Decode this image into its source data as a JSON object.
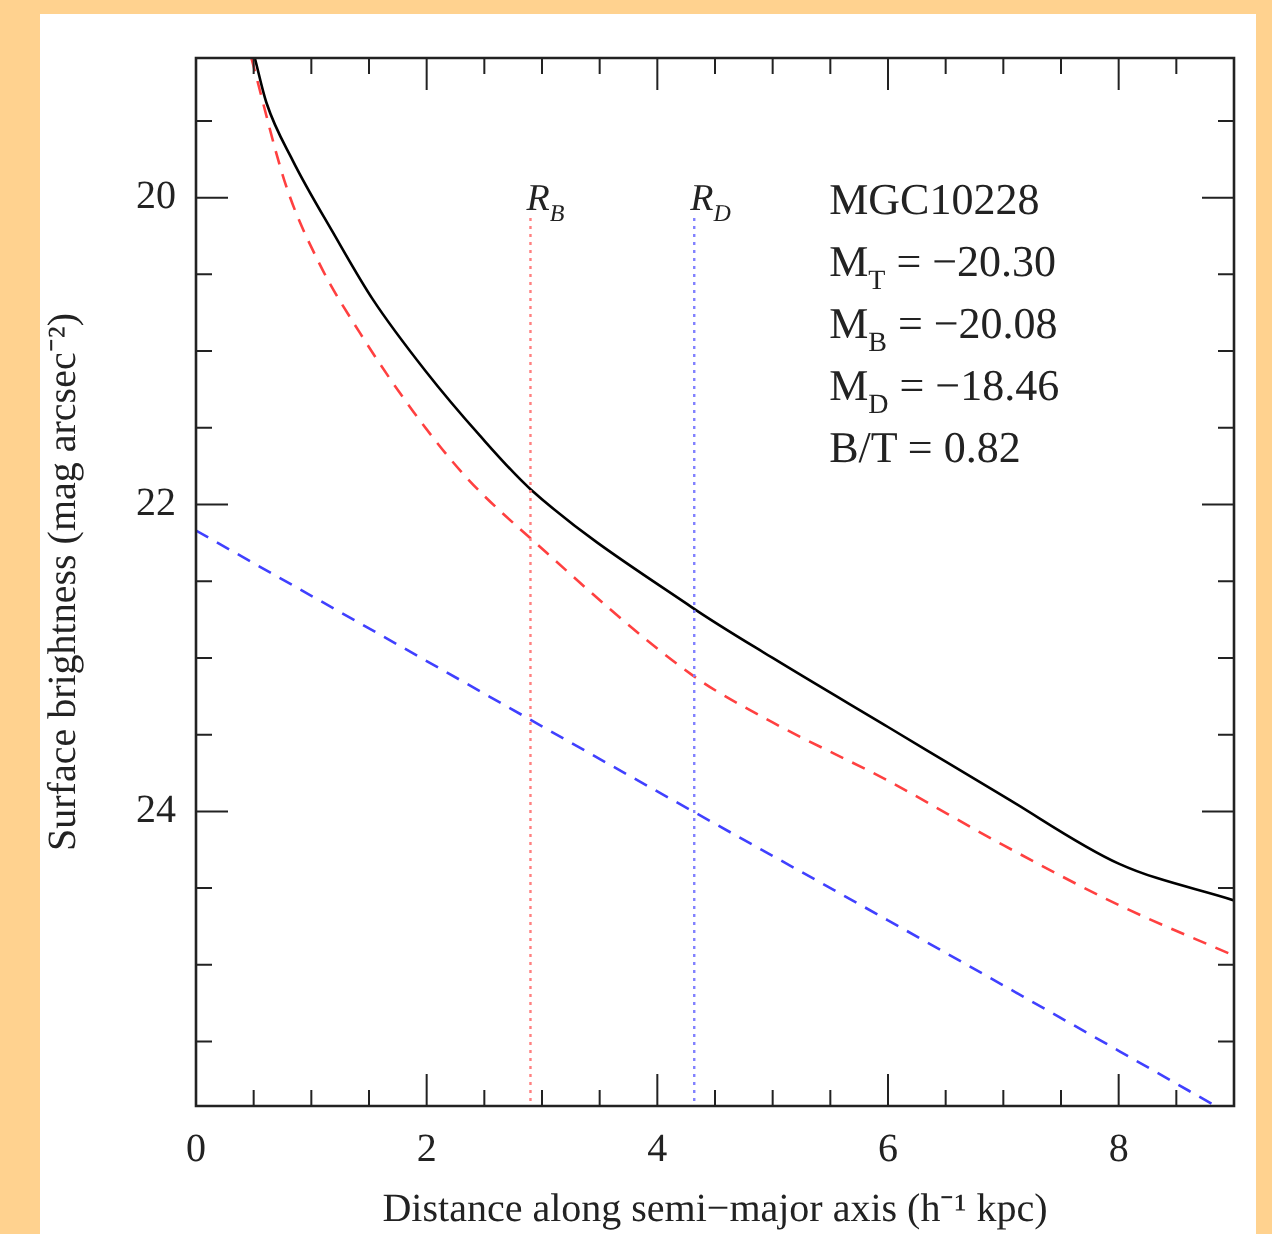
{
  "chart_data": {
    "type": "line",
    "xlabel": "Distance along semi−major axis (h⁻¹ kpc)",
    "ylabel": "Surface brightness (mag arcsec⁻²)",
    "xlim": [
      0,
      9
    ],
    "ylim": [
      25.92,
      19.09
    ],
    "xticks": [
      0,
      {
        "value": 0.5,
        "label": null
      },
      2,
      {
        "value": 1,
        "label": null
      },
      {
        "value": 1.5,
        "label": null
      },
      {
        "value": 2.5,
        "label": null
      },
      {
        "value": 3,
        "label": null
      },
      {
        "value": 3.5,
        "label": null
      },
      4,
      {
        "value": 4.5,
        "label": null
      },
      {
        "value": 5,
        "label": null
      },
      {
        "value": 5.5,
        "label": null
      },
      6,
      {
        "value": 6.5,
        "label": null
      },
      {
        "value": 7,
        "label": null
      },
      {
        "value": 7.5,
        "label": null
      },
      8,
      {
        "value": 8.5,
        "label": null
      }
    ],
    "yticks": [
      {
        "value": 19.5,
        "label": null
      },
      20,
      {
        "value": 20.5,
        "label": null
      },
      {
        "value": 21,
        "label": null
      },
      {
        "value": 21.5,
        "label": null
      },
      22,
      {
        "value": 22.5,
        "label": null
      },
      {
        "value": 23,
        "label": null
      },
      {
        "value": 23.5,
        "label": null
      },
      24,
      {
        "value": 24.5,
        "label": null
      },
      {
        "value": 25,
        "label": null
      },
      {
        "value": 25.5,
        "label": null
      }
    ],
    "grid": false,
    "legend": false,
    "marker": "none",
    "series": [
      {
        "color": "#000000",
        "line_style": "solid",
        "x": [
          0.51,
          0.61,
          0.84,
          1.19,
          1.53,
          1.99,
          2.46,
          2.9,
          4.3,
          5,
          6,
          7,
          8,
          9
        ],
        "values": [
          19.09,
          19.38,
          19.76,
          20.23,
          20.66,
          21.13,
          21.55,
          21.9,
          22.67,
          23.0,
          23.45,
          23.9,
          24.34,
          24.58
        ]
      },
      {
        "color": "#ff4040",
        "line_style": "dashed",
        "x": [
          0.48,
          0.78,
          1.07,
          1.42,
          1.88,
          2.34,
          2.9,
          4.3,
          5,
          6,
          7,
          8,
          9
        ],
        "values": [
          19.09,
          19.92,
          20.43,
          20.88,
          21.39,
          21.82,
          22.22,
          23.11,
          23.42,
          23.8,
          24.22,
          24.61,
          24.94
        ]
      },
      {
        "color": "#4040ff",
        "line_style": "dashed",
        "x": [
          0,
          2,
          4,
          6,
          8,
          8.84
        ],
        "values": [
          22.17,
          23.02,
          23.87,
          24.71,
          25.56,
          25.92
        ]
      }
    ],
    "ref_lines": [
      {
        "axis": "x",
        "value": 2.9,
        "label": "R$_{B}$",
        "color": "#ff8080",
        "line_style": "dotted"
      },
      {
        "axis": "x",
        "value": 4.32,
        "label": "R$_{D}$",
        "color": "#8080ff",
        "line_style": "dotted"
      }
    ],
    "annotations": [
      "MGC10228",
      "M$_{T}$ = −20.30",
      "M$_{B}$ = −20.08",
      "M$_{D}$ = −18.46",
      "B/T = 0.82"
    ]
  }
}
